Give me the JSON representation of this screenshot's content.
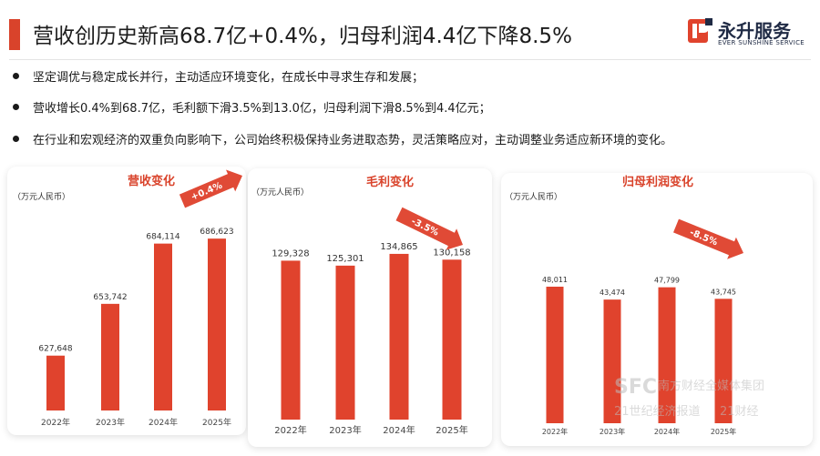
{
  "header": {
    "title": "营收创历史新高68.7亿+0.4%，归母利润4.4亿下降8.5%",
    "logo": {
      "name": "永升服务",
      "sub": "EVER SUNSHINE SERVICE"
    }
  },
  "bullets": [
    "坚定调优与稳定成长并行，主动适应环境变化，在成长中寻求生存和发展；",
    "营收增长0.4%到68.7亿，毛利额下滑3.5%到13.0亿，归母利润下滑8.5%到4.4亿元；",
    "在行业和宏观经济的双重负向影响下，公司始终积极保持业务进取态势，灵活策略应对，主动调整业务适应新环境的变化。"
  ],
  "watermark": {
    "line1": "SFC",
    "line2": "南方财经全媒体集团",
    "line3": "21世纪经济报道",
    "line4": "21财经"
  },
  "colors": {
    "accent": "#d9432b",
    "bar": "#e0432d",
    "arrow": "#e04a36"
  },
  "chart_data": [
    {
      "type": "bar",
      "title": "营收变化",
      "ylabel": "（万元人民币）",
      "categories": [
        "2022年",
        "2023年",
        "2024年",
        "2025年"
      ],
      "values": [
        627648,
        653742,
        684114,
        686623
      ],
      "value_labels": [
        "627,648",
        "653,742",
        "684,114",
        "686,623"
      ],
      "ylim": [
        600000,
        700000
      ],
      "change_label": "+0.4%",
      "change_direction": "up"
    },
    {
      "type": "bar",
      "title": "毛利变化",
      "ylabel": "（万元人民币）",
      "categories": [
        "2022年",
        "2023年",
        "2024年",
        "2025年"
      ],
      "values": [
        129328,
        125301,
        134865,
        130158
      ],
      "value_labels": [
        "129,328",
        "125,301",
        "134,865",
        "130,158"
      ],
      "ylim": [
        0,
        160000
      ],
      "change_label": "-3.5%",
      "change_direction": "down"
    },
    {
      "type": "bar",
      "title": "归母利润变化",
      "ylabel": "（万元人民币）",
      "categories": [
        "2022年",
        "2023年",
        "2024年",
        "2025年"
      ],
      "values": [
        48011,
        43474,
        47799,
        43745
      ],
      "value_labels": [
        "48,011",
        "43,474",
        "47,799",
        "43,745"
      ],
      "ylim": [
        0,
        56000
      ],
      "change_label": "-8.5%",
      "change_direction": "down"
    }
  ]
}
